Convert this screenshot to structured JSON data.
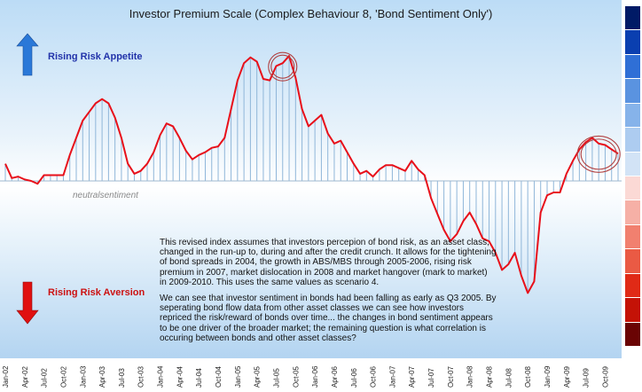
{
  "title": "Investor Premium Scale (Complex Behaviour 8, 'Bond Sentiment Only')",
  "annotations": {
    "rising_risk_appetite": "Rising Risk Appetite",
    "rising_risk_aversion": "Rising Risk Aversion",
    "neutral_sentiment": "neutralsentiment"
  },
  "description": {
    "paragraph1": "This revised index assumes that investors percepion of bond risk, as an asset class, changed in the run-up to, during and after the credit crunch. It allows for the tightening of bond spreads in 2004, the growth in ABS/MBS through 2005-2006, rising risk premium in 2007, market dislocation in 2008 and market hangover (mark to market) in 2009-2010.  This uses the same values as scenario 4.",
    "paragraph2": "We can see that investor sentiment in bonds had been falling as early as Q3 2005. By seperating bond flow data from other asset classes we can see how investors repriced the risk/reward of bonds over time... the changes in bond sentiment appears to be one driver of the broader market; the remaining  question is what correlation is occuring between bonds and other asset classes?"
  },
  "colors": {
    "line": "#e8101a",
    "bars": "#8fb6d9",
    "arrow_up": "#2a78d8",
    "arrow_down": "#e01010",
    "circle": "#b04040",
    "scale": [
      "#001a66",
      "#0a3fb0",
      "#2f6fd6",
      "#5a93e0",
      "#86b3ea",
      "#adccf0",
      "#d2e3f6",
      "#fbd9d5",
      "#f6b0a6",
      "#f1806f",
      "#ea5a44",
      "#e02a16",
      "#c41206",
      "#6a0404"
    ]
  },
  "chart_data": {
    "type": "line",
    "title": "Investor Premium Scale (Complex Behaviour 8, 'Bond Sentiment Only')",
    "xlabel": "",
    "ylabel": "",
    "ylim": [
      -1,
      1
    ],
    "grid": false,
    "x_tick_labels": [
      "Jan-02",
      "Apr-02",
      "Jul-02",
      "Oct-02",
      "Jan-03",
      "Apr-03",
      "Jul-03",
      "Oct-03",
      "Jan-04",
      "Apr-04",
      "Jul-04",
      "Oct-04",
      "Jan-05",
      "Apr-05",
      "Jul-05",
      "Oct-05",
      "Jan-06",
      "Apr-06",
      "Jul-06",
      "Oct-06",
      "Jan-07",
      "Apr-07",
      "Jul-07",
      "Oct-07",
      "Jan-08",
      "Apr-08",
      "Jul-08",
      "Oct-08",
      "Jan-09",
      "Apr-09",
      "Jul-09",
      "Oct-09"
    ],
    "series": [
      {
        "values": [
          0.12,
          0.02,
          0.03,
          0.01,
          0.0,
          -0.02,
          0.04,
          0.04,
          0.04,
          0.04,
          0.18,
          0.3,
          0.42,
          0.48,
          0.54,
          0.57,
          0.54,
          0.44,
          0.3,
          0.12,
          0.05,
          0.07,
          0.12,
          0.2,
          0.32,
          0.4,
          0.38,
          0.3,
          0.21,
          0.15,
          0.18,
          0.2,
          0.23,
          0.24,
          0.3,
          0.5,
          0.7,
          0.82,
          0.86,
          0.83,
          0.71,
          0.7,
          0.8,
          0.82,
          0.87,
          0.72,
          0.5,
          0.38,
          0.42,
          0.46,
          0.33,
          0.26,
          0.28,
          0.2,
          0.12,
          0.05,
          0.07,
          0.03,
          0.08,
          0.11,
          0.11,
          0.09,
          0.07,
          0.14,
          0.08,
          0.04,
          -0.12,
          -0.23,
          -0.34,
          -0.42,
          -0.37,
          -0.28,
          -0.22,
          -0.3,
          -0.4,
          -0.42,
          -0.5,
          -0.62,
          -0.58,
          -0.5,
          -0.66,
          -0.78,
          -0.7,
          -0.22,
          -0.1,
          -0.08,
          -0.08,
          0.05,
          0.14,
          0.22,
          0.27,
          0.3,
          0.26,
          0.25,
          0.22,
          0.19
        ]
      }
    ],
    "circled_points": [
      43,
      92
    ]
  }
}
